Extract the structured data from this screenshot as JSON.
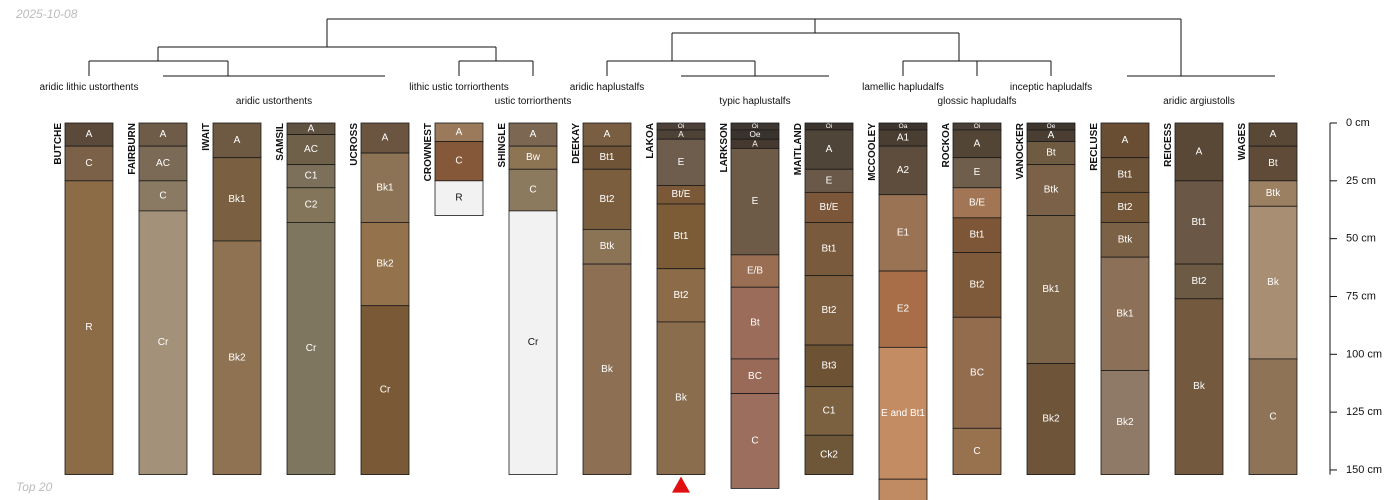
{
  "header": {
    "date": "2025-10-08"
  },
  "footer": {
    "note": "Top 20"
  },
  "chart_data": {
    "type": "soil-profile-sketch",
    "title": "",
    "depth_units": "cm",
    "depth_axis": {
      "ticks": [
        0,
        25,
        50,
        75,
        100,
        125,
        150
      ],
      "tick_labels": [
        "0 cm",
        "25 cm",
        "50 cm",
        "75 cm",
        "100 cm",
        "125 cm",
        "150 cm"
      ],
      "range": [
        0,
        152
      ]
    },
    "group_labels": [
      {
        "text": "aridic lithic ustorthents",
        "members": [
          "BUTCHE",
          "FAIRBURN"
        ]
      },
      {
        "text": "aridic ustorthents",
        "members": [
          "IWAIT",
          "SAMSIL",
          "UCROSS"
        ]
      },
      {
        "text": "lithic ustic torriorthents",
        "members": [
          "CROWNEST"
        ]
      },
      {
        "text": "ustic torriorthents",
        "members": [
          "SHINGLE"
        ]
      },
      {
        "text": "aridic haplustalfs",
        "members": [
          "DEEKAY"
        ]
      },
      {
        "text": "typic haplustalfs",
        "members": [
          "LAKOA",
          "LARKSON",
          "MAITLAND"
        ]
      },
      {
        "text": "lamellic hapludalfs",
        "members": [
          "MCCOOLEY"
        ]
      },
      {
        "text": "glossic hapludalfs",
        "members": [
          "ROCKOA"
        ]
      },
      {
        "text": "inceptic hapludalfs",
        "members": [
          "VANOCKER"
        ]
      },
      {
        "text": "aridic argiustolls",
        "members": [
          "RECLUSE",
          "REICESS",
          "WAGES"
        ]
      }
    ],
    "profiles": [
      {
        "name": "BUTCHE",
        "horizons": [
          {
            "name": "A",
            "top": 0,
            "bottom": 10,
            "color": "#5b4a3a"
          },
          {
            "name": "C",
            "top": 10,
            "bottom": 25,
            "color": "#7a6148"
          },
          {
            "name": "R",
            "top": 25,
            "bottom": 152,
            "color": "#8c6b47"
          }
        ]
      },
      {
        "name": "FAIRBURN",
        "horizons": [
          {
            "name": "A",
            "top": 0,
            "bottom": 10,
            "color": "#6e5c48"
          },
          {
            "name": "AC",
            "top": 10,
            "bottom": 25,
            "color": "#7b6a56"
          },
          {
            "name": "C",
            "top": 25,
            "bottom": 38,
            "color": "#8a7a63"
          },
          {
            "name": "Cr",
            "top": 38,
            "bottom": 152,
            "color": "#a39279"
          }
        ]
      },
      {
        "name": "IWAIT",
        "horizons": [
          {
            "name": "A",
            "top": 0,
            "bottom": 15,
            "color": "#6e5a43"
          },
          {
            "name": "Bk1",
            "top": 15,
            "bottom": 51,
            "color": "#7a6040"
          },
          {
            "name": "Bk2",
            "top": 51,
            "bottom": 152,
            "color": "#8e7252"
          }
        ]
      },
      {
        "name": "SAMSIL",
        "horizons": [
          {
            "name": "A",
            "top": 0,
            "bottom": 5,
            "color": "#5f5240"
          },
          {
            "name": "AC",
            "top": 5,
            "bottom": 18,
            "color": "#6e6049"
          },
          {
            "name": "C1",
            "top": 18,
            "bottom": 28,
            "color": "#7d705a"
          },
          {
            "name": "C2",
            "top": 28,
            "bottom": 43,
            "color": "#837559"
          },
          {
            "name": "Cr",
            "top": 43,
            "bottom": 152,
            "color": "#7f7660"
          }
        ]
      },
      {
        "name": "UCROSS",
        "horizons": [
          {
            "name": "A",
            "top": 0,
            "bottom": 13,
            "color": "#6b5540"
          },
          {
            "name": "Bk1",
            "top": 13,
            "bottom": 43,
            "color": "#8c7356"
          },
          {
            "name": "Bk2",
            "top": 43,
            "bottom": 79,
            "color": "#94734c"
          },
          {
            "name": "Cr",
            "top": 79,
            "bottom": 152,
            "color": "#7a5a36"
          }
        ]
      },
      {
        "name": "CROWNEST",
        "horizons": [
          {
            "name": "A",
            "top": 0,
            "bottom": 8,
            "color": "#9b7a5c"
          },
          {
            "name": "C",
            "top": 8,
            "bottom": 25,
            "color": "#86583a"
          },
          {
            "name": "R",
            "top": 25,
            "bottom": 40,
            "color": "#f2f2f2"
          }
        ]
      },
      {
        "name": "SHINGLE",
        "horizons": [
          {
            "name": "A",
            "top": 0,
            "bottom": 10,
            "color": "#7c6852"
          },
          {
            "name": "Bw",
            "top": 10,
            "bottom": 20,
            "color": "#8d7554"
          },
          {
            "name": "C",
            "top": 20,
            "bottom": 38,
            "color": "#8c7a5e"
          },
          {
            "name": "Cr",
            "top": 38,
            "bottom": 152,
            "color": "#f2f2f2"
          }
        ]
      },
      {
        "name": "DEEKAY",
        "horizons": [
          {
            "name": "A",
            "top": 0,
            "bottom": 10,
            "color": "#7a5e42"
          },
          {
            "name": "Bt1",
            "top": 10,
            "bottom": 20,
            "color": "#6f5437"
          },
          {
            "name": "Bt2",
            "top": 20,
            "bottom": 46,
            "color": "#7b5e3e"
          },
          {
            "name": "Btk",
            "top": 46,
            "bottom": 61,
            "color": "#8b7356"
          },
          {
            "name": "Bk",
            "top": 61,
            "bottom": 152,
            "color": "#8d7054"
          }
        ]
      },
      {
        "name": "LAKOA",
        "marker": "triangle",
        "horizons": [
          {
            "name": "Oi",
            "top": 0,
            "bottom": 3,
            "color": "#4c4038"
          },
          {
            "name": "A",
            "top": 3,
            "bottom": 7,
            "color": "#4e4236"
          },
          {
            "name": "E",
            "top": 7,
            "bottom": 27,
            "color": "#6e5c4c"
          },
          {
            "name": "Bt/E",
            "top": 27,
            "bottom": 35,
            "color": "#7a5838"
          },
          {
            "name": "Bt1",
            "top": 35,
            "bottom": 63,
            "color": "#7b5c37"
          },
          {
            "name": "Bt2",
            "top": 63,
            "bottom": 86,
            "color": "#8c6b49"
          },
          {
            "name": "Bk",
            "top": 86,
            "bottom": 152,
            "color": "#8a6d4c"
          }
        ]
      },
      {
        "name": "LARKSON",
        "horizons": [
          {
            "name": "Oi",
            "top": 0,
            "bottom": 3,
            "color": "#3e3630"
          },
          {
            "name": "Oe",
            "top": 3,
            "bottom": 7,
            "color": "#3a332d"
          },
          {
            "name": "A",
            "top": 7,
            "bottom": 11,
            "color": "#45392f"
          },
          {
            "name": "E",
            "top": 11,
            "bottom": 57,
            "color": "#6e5b47"
          },
          {
            "name": "E/B",
            "top": 57,
            "bottom": 71,
            "color": "#9a6e52"
          },
          {
            "name": "Bt",
            "top": 71,
            "bottom": 102,
            "color": "#9b6c5a"
          },
          {
            "name": "BC",
            "top": 102,
            "bottom": 117,
            "color": "#9a6a58"
          },
          {
            "name": "C",
            "top": 117,
            "bottom": 158,
            "color": "#9c6e5e"
          }
        ]
      },
      {
        "name": "MAITLAND",
        "horizons": [
          {
            "name": "Oi",
            "top": 0,
            "bottom": 3,
            "color": "#3c352d"
          },
          {
            "name": "A",
            "top": 3,
            "bottom": 20,
            "color": "#4f4538"
          },
          {
            "name": "E",
            "top": 20,
            "bottom": 30,
            "color": "#6a5848"
          },
          {
            "name": "Bt/E",
            "top": 30,
            "bottom": 43,
            "color": "#7b5639"
          },
          {
            "name": "Bt1",
            "top": 43,
            "bottom": 66,
            "color": "#7a5a3d"
          },
          {
            "name": "Bt2",
            "top": 66,
            "bottom": 96,
            "color": "#7d5e3f"
          },
          {
            "name": "Bt3",
            "top": 96,
            "bottom": 114,
            "color": "#6e5234"
          },
          {
            "name": "C1",
            "top": 114,
            "bottom": 135,
            "color": "#7c6140"
          },
          {
            "name": "Ck2",
            "top": 135,
            "bottom": 152,
            "color": "#6e5638"
          }
        ]
      },
      {
        "name": "MCCOOLEY",
        "horizons": [
          {
            "name": "Oa",
            "top": 0,
            "bottom": 3,
            "color": "#3c342d"
          },
          {
            "name": "A1",
            "top": 3,
            "bottom": 10,
            "color": "#4a3d31"
          },
          {
            "name": "A2",
            "top": 10,
            "bottom": 31,
            "color": "#5e4c3c"
          },
          {
            "name": "E1",
            "top": 31,
            "bottom": 64,
            "color": "#9a7355"
          },
          {
            "name": "E2",
            "top": 64,
            "bottom": 97,
            "color": "#a86e48"
          },
          {
            "name": "E and Bt1",
            "top": 97,
            "bottom": 154,
            "color": "#c48c62"
          },
          {
            "name": "",
            "top": 154,
            "bottom": 166,
            "color": "#c08a62"
          }
        ]
      },
      {
        "name": "ROCKOA",
        "horizons": [
          {
            "name": "Oi",
            "top": 0,
            "bottom": 3,
            "color": "#4a3f36"
          },
          {
            "name": "A",
            "top": 3,
            "bottom": 15,
            "color": "#534536"
          },
          {
            "name": "E",
            "top": 15,
            "bottom": 28,
            "color": "#6f5e4c"
          },
          {
            "name": "B/E",
            "top": 28,
            "bottom": 41,
            "color": "#a27654"
          },
          {
            "name": "Bt1",
            "top": 41,
            "bottom": 56,
            "color": "#7d5637"
          },
          {
            "name": "Bt2",
            "top": 56,
            "bottom": 84,
            "color": "#7e5a3a"
          },
          {
            "name": "BC",
            "top": 84,
            "bottom": 132,
            "color": "#936c4e"
          },
          {
            "name": "C",
            "top": 132,
            "bottom": 152,
            "color": "#98724f"
          }
        ]
      },
      {
        "name": "VANOCKER",
        "horizons": [
          {
            "name": "Oe",
            "top": 0,
            "bottom": 3,
            "color": "#3f362e"
          },
          {
            "name": "A",
            "top": 3,
            "bottom": 8,
            "color": "#4a3e33"
          },
          {
            "name": "Bt",
            "top": 8,
            "bottom": 18,
            "color": "#6f5a42"
          },
          {
            "name": "Btk",
            "top": 18,
            "bottom": 40,
            "color": "#7a6147"
          },
          {
            "name": "Bk1",
            "top": 40,
            "bottom": 104,
            "color": "#7c6448"
          },
          {
            "name": "Bk2",
            "top": 104,
            "bottom": 152,
            "color": "#6e5439"
          }
        ]
      },
      {
        "name": "RECLUSE",
        "horizons": [
          {
            "name": "A",
            "top": 0,
            "bottom": 15,
            "color": "#6a4e33"
          },
          {
            "name": "Bt1",
            "top": 15,
            "bottom": 30,
            "color": "#6c5236"
          },
          {
            "name": "Bt2",
            "top": 30,
            "bottom": 43,
            "color": "#735638"
          },
          {
            "name": "Btk",
            "top": 43,
            "bottom": 58,
            "color": "#7b6146"
          },
          {
            "name": "Bk1",
            "top": 58,
            "bottom": 107,
            "color": "#8c7158"
          },
          {
            "name": "Bk2",
            "top": 107,
            "bottom": 152,
            "color": "#8e7a66"
          }
        ]
      },
      {
        "name": "REICESS",
        "horizons": [
          {
            "name": "A",
            "top": 0,
            "bottom": 25,
            "color": "#5a4836"
          },
          {
            "name": "Bt1",
            "top": 25,
            "bottom": 61,
            "color": "#6a5745"
          },
          {
            "name": "Bt2",
            "top": 61,
            "bottom": 76,
            "color": "#6c5a44"
          },
          {
            "name": "Bk",
            "top": 76,
            "bottom": 152,
            "color": "#735a3f"
          }
        ]
      },
      {
        "name": "WAGES",
        "horizons": [
          {
            "name": "A",
            "top": 0,
            "bottom": 10,
            "color": "#594835"
          },
          {
            "name": "Bt",
            "top": 10,
            "bottom": 25,
            "color": "#5f4b37"
          },
          {
            "name": "Btk",
            "top": 25,
            "bottom": 36,
            "color": "#9c8062"
          },
          {
            "name": "Bk",
            "top": 36,
            "bottom": 102,
            "color": "#a88e72"
          },
          {
            "name": "C",
            "top": 102,
            "bottom": 152,
            "color": "#8f7356"
          }
        ]
      }
    ]
  }
}
